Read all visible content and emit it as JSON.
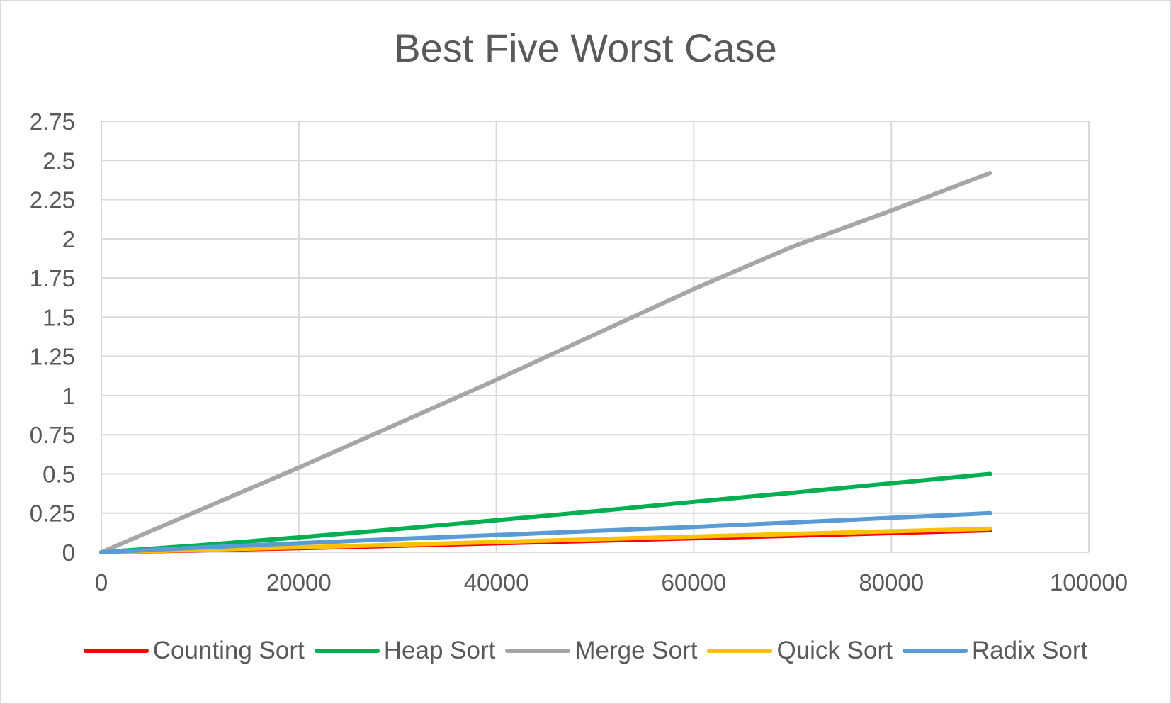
{
  "chart_data": {
    "type": "line",
    "title": "Best Five Worst Case",
    "xlabel": "",
    "ylabel": "",
    "xlim": [
      0,
      100000
    ],
    "ylim": [
      0,
      2.75
    ],
    "x_ticks": [
      "0",
      "20000",
      "40000",
      "60000",
      "80000",
      "100000"
    ],
    "y_ticks": [
      "0",
      "0.25",
      "0.5",
      "0.75",
      "1",
      "1.25",
      "1.5",
      "1.75",
      "2",
      "2.25",
      "2.5",
      "2.75"
    ],
    "grid": true,
    "legend_position": "bottom",
    "x": [
      0,
      10000,
      20000,
      30000,
      40000,
      50000,
      60000,
      70000,
      80000,
      90000
    ],
    "series": [
      {
        "name": "Counting Sort",
        "color": "#ff0000",
        "values": [
          0,
          0.012,
          0.026,
          0.041,
          0.057,
          0.073,
          0.089,
          0.105,
          0.122,
          0.14
        ]
      },
      {
        "name": "Heap Sort",
        "color": "#00b050",
        "values": [
          0,
          0.045,
          0.095,
          0.148,
          0.205,
          0.262,
          0.322,
          0.38,
          0.44,
          0.5
        ]
      },
      {
        "name": "Merge Sort",
        "color": "#a6a6a6",
        "values": [
          0,
          0.27,
          0.54,
          0.82,
          1.1,
          1.39,
          1.68,
          1.95,
          2.18,
          2.42
        ]
      },
      {
        "name": "Quick Sort",
        "color": "#ffc000",
        "values": [
          0,
          0.015,
          0.031,
          0.048,
          0.065,
          0.083,
          0.1,
          0.117,
          0.134,
          0.15
        ]
      },
      {
        "name": "Radix Sort",
        "color": "#5b9bd5",
        "values": [
          0,
          0.03,
          0.058,
          0.085,
          0.11,
          0.136,
          0.162,
          0.19,
          0.22,
          0.25
        ]
      }
    ]
  }
}
